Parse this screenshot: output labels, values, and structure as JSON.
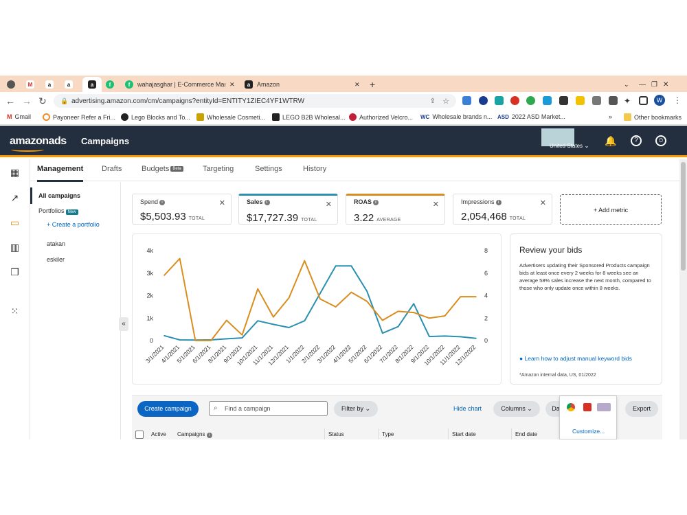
{
  "browser": {
    "tabs": [
      {
        "label": "wahajasghar | E-Commerce Mark"
      },
      {
        "label": "Amazon"
      }
    ],
    "url": "advertising.amazon.com/cm/campaigns?entityId=ENTITY1ZIEC4YF1WTRW",
    "bookmarks": [
      "Gmail",
      "Payoneer Refer a Fri...",
      "Lego Blocks and To...",
      "Wholesale Cosmeti...",
      "LEGO B2B Wholesal...",
      "Authorized Velcro...",
      "Wholesale brands n...",
      "2022 ASD Market..."
    ],
    "other_bookmarks": "Other bookmarks",
    "avatar_letter": "W",
    "more": "»"
  },
  "header": {
    "logo": "amazonads",
    "title": "Campaigns",
    "country": "United States"
  },
  "nav": {
    "tabs": [
      "Management",
      "Drafts",
      "Budgets",
      "Targeting",
      "Settings",
      "History"
    ],
    "beta": "Beta"
  },
  "sidebar": {
    "all_campaigns": "All campaigns",
    "portfolios": "Portfolios",
    "new_badge": "New",
    "create_portfolio": "+ Create a portfolio",
    "items": [
      "atakan",
      "eskiler"
    ]
  },
  "metrics": [
    {
      "label": "Spend",
      "value": "$5,503.93",
      "sub": "TOTAL"
    },
    {
      "label": "Sales",
      "value": "$17,727.39",
      "sub": "TOTAL"
    },
    {
      "label": "ROAS",
      "value": "3.22",
      "sub": "AVERAGE"
    },
    {
      "label": "Impressions",
      "value": "2,054,468",
      "sub": "TOTAL"
    }
  ],
  "add_metric": "+ Add metric",
  "review": {
    "title": "Review your bids",
    "body": "Advertisers updating their Sponsored Products campaign bids at least once every 2 weeks for 8 weeks see an average 58% sales increase the next month, compared to those who only update once within 8 weeks.",
    "link": "Learn how to adjust manual keyword bids",
    "note": "*Amazon internal data, US, 01/2022"
  },
  "toolbar": {
    "create": "Create campaign",
    "search_placeholder": "Find a campaign",
    "filter": "Filter by",
    "hide_chart": "Hide chart",
    "columns": "Columns",
    "date": "Da",
    "export": "Export",
    "customize": "Customize..."
  },
  "table": {
    "headers": [
      "Active",
      "Campaigns",
      "Status",
      "Type",
      "Start date",
      "End date"
    ]
  },
  "colors": {
    "blue_series": "#2a8fb0",
    "orange_series": "#d98d1e",
    "header_bg": "#232f3e",
    "accent": "#ff9900"
  },
  "chart_data": {
    "type": "line",
    "x": [
      "3/1/2021",
      "4/1/2021",
      "5/1/2021",
      "6/1/2021",
      "8/1/2021",
      "9/1/2021",
      "10/1/2021",
      "11/1/2021",
      "12/1/2021",
      "1/1/2022",
      "2/1/2022",
      "3/1/2022",
      "4/1/2022",
      "5/1/2022",
      "6/1/2022",
      "7/1/2022",
      "8/1/2022",
      "9/1/2022",
      "10/1/2022",
      "11/1/2022",
      "12/1/2022"
    ],
    "x_ticks": [
      "3/1/2021",
      "4/1/2021",
      "5/1/2021",
      "6/1/2021",
      "8/1/2021",
      "9/1/2021",
      "10/1/2021",
      "11/1/2021",
      "12/1/2021",
      "1/1/2022",
      "2/1/2022",
      "3/1/2022",
      "4/1/2022",
      "5/1/2022",
      "6/1/2022",
      "7/1/2022",
      "8/1/2022",
      "9/1/2022",
      "10/1/2022",
      "11/1/2022",
      "12/1/2022"
    ],
    "y_left_ticks": [
      "0",
      "1k",
      "2k",
      "3k",
      "4k"
    ],
    "y_right_ticks": [
      "0",
      "2",
      "4",
      "6",
      "8"
    ],
    "ylim_left": [
      0,
      4000
    ],
    "ylim_right": [
      0,
      8
    ],
    "series": [
      {
        "axis": "left",
        "color": "#2a8fb0",
        "values": [
          220,
          30,
          20,
          30,
          80,
          120,
          880,
          720,
          580,
          880,
          2100,
          3320,
          3320,
          2200,
          330,
          620,
          1640,
          180,
          200,
          170,
          100
        ]
      },
      {
        "axis": "right",
        "color": "#d98d1e",
        "values": [
          5.8,
          7.3,
          0,
          0,
          1.8,
          0.5,
          4.6,
          2.1,
          3.8,
          7.1,
          3.7,
          3.0,
          4.3,
          3.5,
          1.8,
          2.6,
          2.5,
          2.0,
          2.2,
          3.9,
          3.9
        ]
      }
    ]
  }
}
